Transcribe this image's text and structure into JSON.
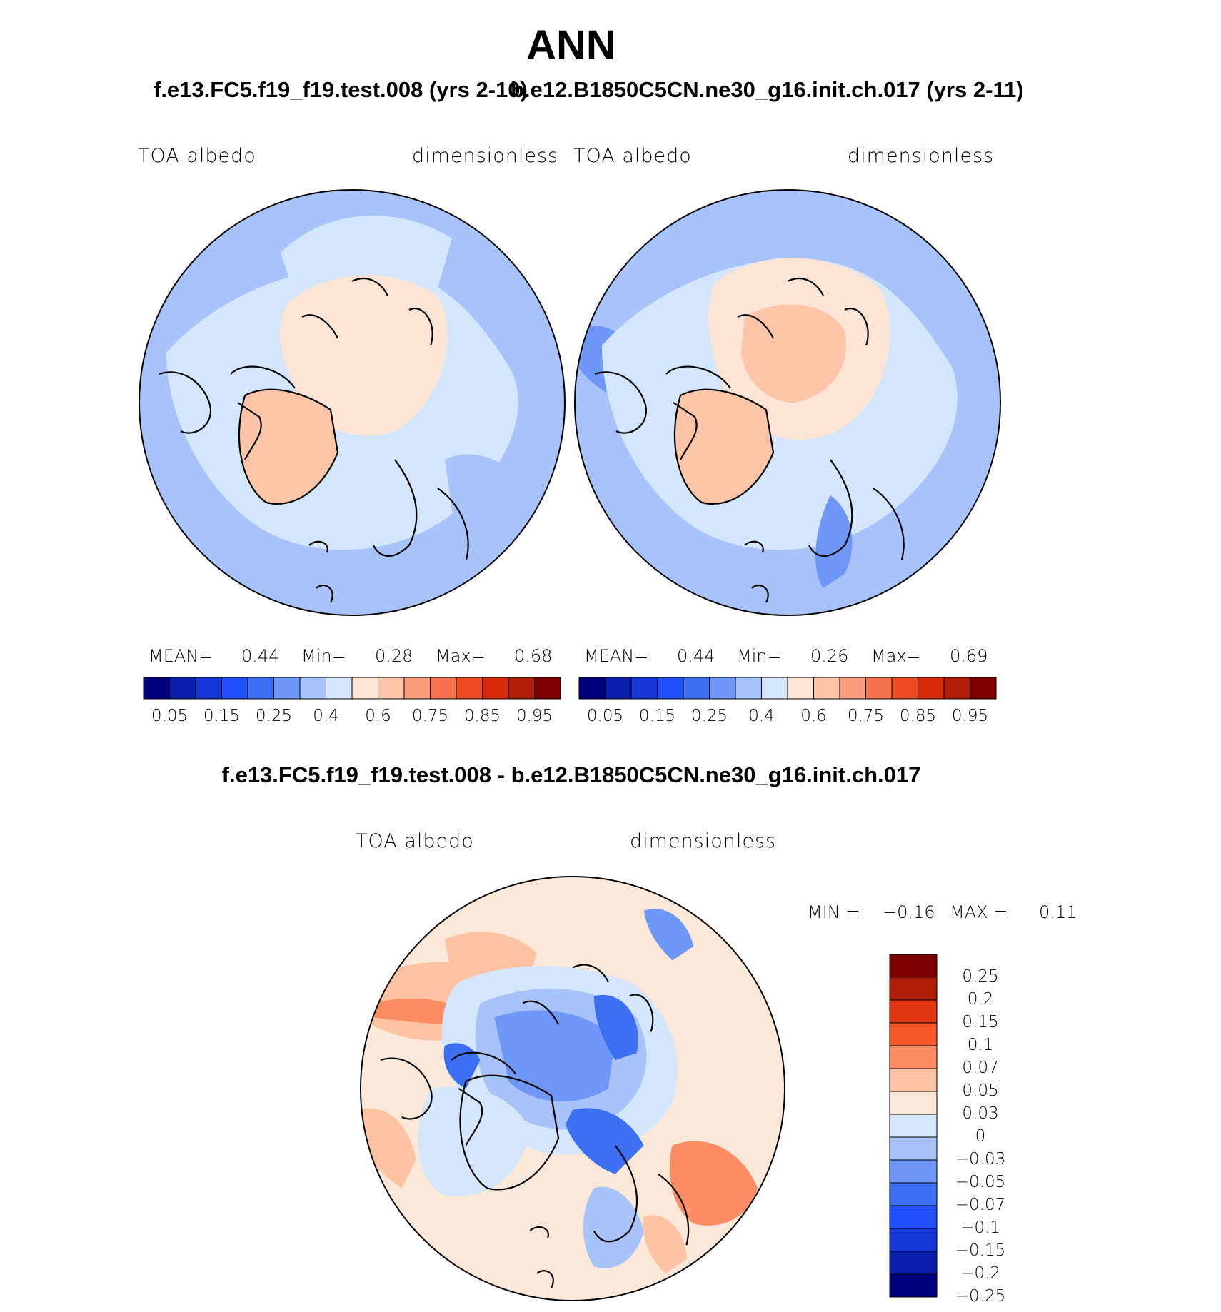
{
  "title": "ANN",
  "panels": [
    {
      "case_title": "f.e13.FC5.f19_f19.test.008 (yrs 2-10)",
      "var_label": "TOA albedo",
      "units_label": "dimensionless",
      "stats": {
        "mean_label": "MEAN=",
        "mean": "0.44",
        "min_label": "Min=",
        "min": "0.28",
        "max_label": "Max=",
        "max": "0.68"
      }
    },
    {
      "case_title": "b.e12.B1850C5CN.ne30_g16.init.ch.017 (yrs 2-11)",
      "var_label": "TOA albedo",
      "units_label": "dimensionless",
      "stats": {
        "mean_label": "MEAN=",
        "mean": "0.44",
        "min_label": "Min=",
        "min": "0.26",
        "max_label": "Max=",
        "max": "0.69"
      }
    }
  ],
  "diff_panel": {
    "title": "f.e13.FC5.f19_f19.test.008 - b.e12.B1850C5CN.ne30_g16.init.ch.017",
    "var_label": "TOA albedo",
    "units_label": "dimensionless",
    "min_label": "MIN =",
    "min": "−0.16",
    "max_label": "MAX =",
    "max": "0.11"
  },
  "chart_data": [
    {
      "type": "heatmap",
      "projection": "north polar stereographic",
      "title": "f.e13.FC5.f19_f19.test.008 (yrs 2-10)",
      "variable": "TOA albedo",
      "units": "dimensionless",
      "mean": 0.44,
      "min": 0.28,
      "max": 0.68,
      "colorbar": {
        "colors": [
          "#00007f",
          "#0a1fb0",
          "#1437d6",
          "#1f4fff",
          "#3c6ff2",
          "#6f97f7",
          "#a8c2fa",
          "#d4e6fb",
          "#fce5d5",
          "#fdc4a8",
          "#fb9c7c",
          "#f7734e",
          "#f04a23",
          "#d72a0b",
          "#b01e08",
          "#7f0000"
        ],
        "ticks": [
          "0.05",
          "0.15",
          "0.25",
          "0.4",
          "0.6",
          "0.75",
          "0.85",
          "0.95"
        ]
      }
    },
    {
      "type": "heatmap",
      "projection": "north polar stereographic",
      "title": "b.e12.B1850C5CN.ne30_g16.init.ch.017 (yrs 2-11)",
      "variable": "TOA albedo",
      "units": "dimensionless",
      "mean": 0.44,
      "min": 0.26,
      "max": 0.69,
      "colorbar": {
        "colors": [
          "#00007f",
          "#0a1fb0",
          "#1437d6",
          "#1f4fff",
          "#3c6ff2",
          "#6f97f7",
          "#a8c2fa",
          "#d4e6fb",
          "#fce5d5",
          "#fdc4a8",
          "#fb9c7c",
          "#f7734e",
          "#f04a23",
          "#d72a0b",
          "#b01e08",
          "#7f0000"
        ],
        "ticks": [
          "0.05",
          "0.15",
          "0.25",
          "0.4",
          "0.6",
          "0.75",
          "0.85",
          "0.95"
        ]
      }
    },
    {
      "type": "heatmap",
      "projection": "north polar stereographic",
      "title": "f.e13.FC5.f19_f19.test.008 - b.e12.B1850C5CN.ne30_g16.init.ch.017",
      "variable": "TOA albedo",
      "units": "dimensionless",
      "min": -0.16,
      "max": 0.11,
      "colorbar": {
        "colors": [
          "#7f0000",
          "#b01e08",
          "#e0360f",
          "#f7582a",
          "#fb8c64",
          "#fdc2a2",
          "#fce8d8",
          "#d4e6fb",
          "#a8c2fa",
          "#6f97f7",
          "#3c6ff2",
          "#1f4fff",
          "#1437d6",
          "#0a1fb0",
          "#00007f"
        ],
        "ticks": [
          "0.25",
          "0.2",
          "0.15",
          "0.1",
          "0.07",
          "0.05",
          "0.03",
          "0",
          "−0.03",
          "−0.05",
          "−0.07",
          "−0.1",
          "−0.15",
          "−0.2",
          "−0.25"
        ]
      }
    }
  ]
}
